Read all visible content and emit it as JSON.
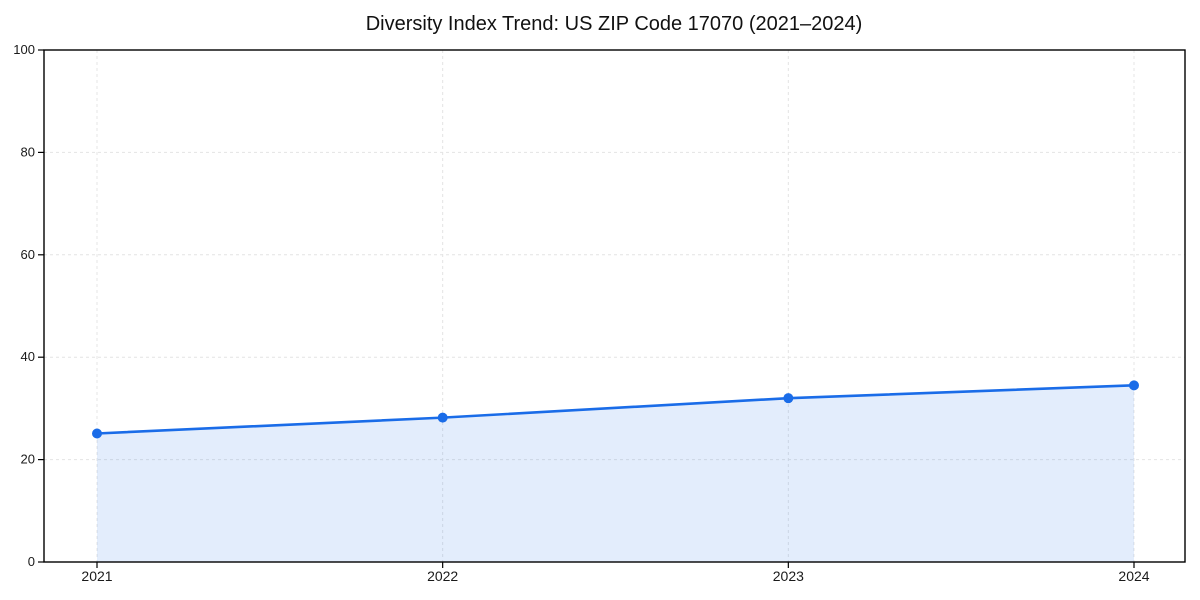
{
  "chart_data": {
    "type": "line",
    "title": "Diversity Index Trend: US ZIP Code 17070 (2021–2024)",
    "categories": [
      "2021",
      "2022",
      "2023",
      "2024"
    ],
    "series": [
      {
        "name": "Diversity Index",
        "values": [
          25.1,
          28.2,
          32.0,
          34.5
        ]
      }
    ],
    "xlabel": "",
    "ylabel": "",
    "ylim": [
      0,
      100
    ],
    "y_ticks": [
      0,
      20,
      40,
      60,
      80,
      100
    ],
    "grid": "dashed-both-axes",
    "legend_position": "none",
    "area_fill": true,
    "style": {
      "line_color": "#1a6ce8",
      "marker_color": "#1a6ce8",
      "fill_color": "#1a6ce8",
      "fill_opacity": 0.12,
      "grid_color": "#e4e4e4",
      "axis_color": "#000000",
      "tick_text_color": "#1a1a1a",
      "title_color": "#111111"
    }
  }
}
